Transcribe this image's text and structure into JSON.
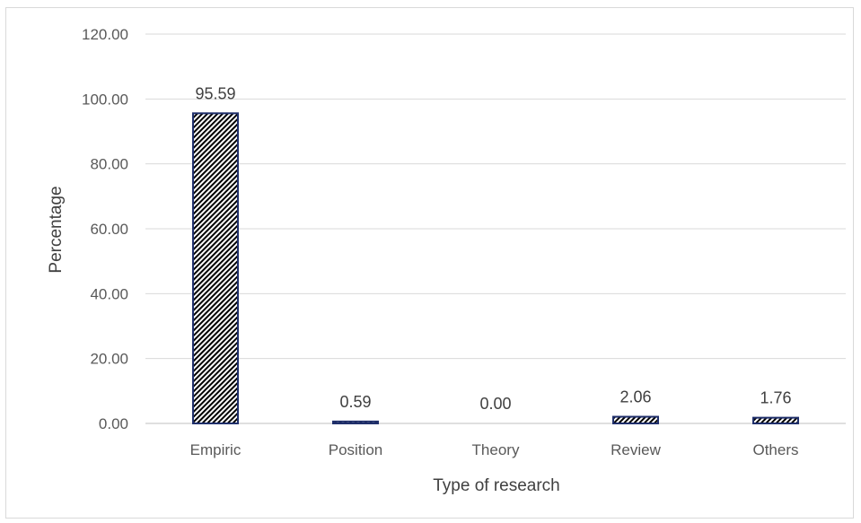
{
  "chart_data": {
    "type": "bar",
    "title": "",
    "xlabel": "Type of research",
    "ylabel": "Percentage",
    "categories": [
      "Empiric",
      "Position",
      "Theory",
      "Review",
      "Others"
    ],
    "values": [
      95.59,
      0.59,
      0.0,
      2.06,
      1.76
    ],
    "data_labels": [
      "95.59",
      "0.59",
      "0.00",
      "2.06",
      "1.76"
    ],
    "ylim": [
      0,
      120
    ],
    "yticks": [
      0,
      20,
      40,
      60,
      80,
      100,
      120
    ],
    "ytick_labels": [
      "0.00",
      "20.00",
      "40.00",
      "60.00",
      "80.00",
      "100.00",
      "120.00"
    ],
    "grid": true,
    "legend": "none",
    "colors": {
      "bar_border": "#1f2f6b",
      "bar_fill_pattern": "diagonal-hatch-black-white",
      "gridline": "#d9d9d9",
      "axis_line": "#bfbfbf"
    }
  }
}
